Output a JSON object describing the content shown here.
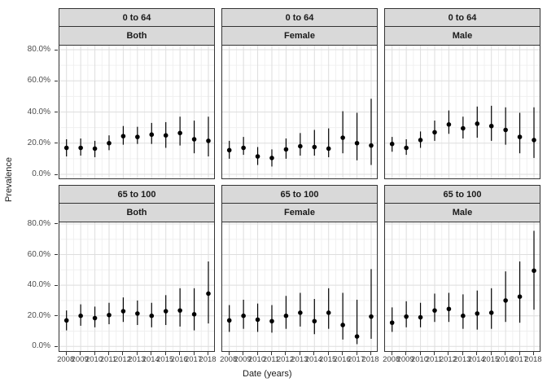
{
  "chart_data": {
    "type": "scatter",
    "subtype": "pointrange-facet-grid",
    "title": "",
    "xlabel": "Date (years)",
    "ylabel": "Prevalence",
    "x": [
      2008,
      2009,
      2010,
      2011,
      2012,
      2013,
      2014,
      2015,
      2016,
      2017,
      2018
    ],
    "x_tick_labels": [
      "2008",
      "2009",
      "2010",
      "2011",
      "2012",
      "2013",
      "2014",
      "2015",
      "2016",
      "2017",
      "2018"
    ],
    "y_tick_values": [
      0,
      20,
      40,
      60,
      80
    ],
    "y_tick_labels": [
      "0.0%",
      "20.0%",
      "40.0%",
      "60.0%",
      "80.0%"
    ],
    "ylim": [
      -3,
      83
    ],
    "grid": true,
    "legend": "none",
    "facet_rows": [
      "0 to 64",
      "65 to 100"
    ],
    "facet_cols": [
      "Both",
      "Female",
      "Male"
    ],
    "points_format": "[value_pct, ci_low_pct, ci_high_pct]",
    "panels": [
      {
        "row_label": "0 to 64",
        "col_label": "Both",
        "points": [
          [
            17,
            11.5,
            22.5
          ],
          [
            17,
            12,
            23
          ],
          [
            16.5,
            11,
            21.5
          ],
          [
            20,
            15.5,
            25
          ],
          [
            24.5,
            19,
            31
          ],
          [
            24,
            19.5,
            30.5
          ],
          [
            25.5,
            19.5,
            33
          ],
          [
            25,
            17,
            33.5
          ],
          [
            26.5,
            18.5,
            37
          ],
          [
            22.5,
            13.5,
            34.5
          ],
          [
            21.5,
            11.5,
            37
          ]
        ]
      },
      {
        "row_label": "0 to 64",
        "col_label": "Female",
        "points": [
          [
            15.5,
            10,
            21.5
          ],
          [
            17,
            12.5,
            24
          ],
          [
            11.5,
            6,
            17.5
          ],
          [
            10.5,
            5,
            16
          ],
          [
            16,
            10,
            23
          ],
          [
            18,
            12,
            26.5
          ],
          [
            17.5,
            12,
            28.5
          ],
          [
            16.5,
            11,
            29.5
          ],
          [
            23.5,
            13.5,
            40.5
          ],
          [
            20,
            9,
            39.5
          ],
          [
            18.5,
            6,
            48.5
          ]
        ]
      },
      {
        "row_label": "0 to 64",
        "col_label": "Male",
        "points": [
          [
            19.5,
            14.5,
            24
          ],
          [
            17,
            12.5,
            22.5
          ],
          [
            22,
            17,
            27.5
          ],
          [
            27,
            21.5,
            34.5
          ],
          [
            32,
            26,
            41
          ],
          [
            29.5,
            23,
            37
          ],
          [
            32.5,
            23.5,
            43.5
          ],
          [
            31,
            21.5,
            44
          ],
          [
            28.5,
            19,
            43
          ],
          [
            24,
            13.5,
            39.5
          ],
          [
            22,
            10.5,
            43
          ]
        ]
      },
      {
        "row_label": "65 to 100",
        "col_label": "Both",
        "points": [
          [
            17,
            10.5,
            23.5
          ],
          [
            20,
            13.5,
            27.5
          ],
          [
            18.5,
            12.5,
            26
          ],
          [
            20.5,
            14.5,
            28.5
          ],
          [
            23,
            16,
            32
          ],
          [
            21.5,
            14,
            30
          ],
          [
            20,
            12.5,
            28.5
          ],
          [
            23,
            14,
            33.5
          ],
          [
            23.5,
            13,
            38
          ],
          [
            21,
            10.5,
            38
          ],
          [
            34.5,
            15,
            55.5
          ]
        ]
      },
      {
        "row_label": "65 to 100",
        "col_label": "Female",
        "points": [
          [
            17,
            9.5,
            27
          ],
          [
            20,
            11.5,
            30.5
          ],
          [
            17.5,
            9.5,
            28
          ],
          [
            16.5,
            9,
            27
          ],
          [
            20,
            11.5,
            33
          ],
          [
            22,
            13,
            35
          ],
          [
            16.5,
            8,
            31
          ],
          [
            22,
            11.5,
            38
          ],
          [
            14,
            4.5,
            35
          ],
          [
            6.5,
            1.5,
            30.5
          ],
          [
            19.5,
            5,
            50.5
          ]
        ]
      },
      {
        "row_label": "65 to 100",
        "col_label": "Male",
        "points": [
          [
            15.5,
            9.5,
            25.5
          ],
          [
            19.5,
            12.5,
            29.5
          ],
          [
            19,
            12.5,
            28.5
          ],
          [
            23.5,
            16,
            34.5
          ],
          [
            24.5,
            16,
            35
          ],
          [
            20,
            11.5,
            34
          ],
          [
            21.5,
            11,
            36.5
          ],
          [
            22,
            11.5,
            38
          ],
          [
            30,
            16,
            49
          ],
          [
            32.5,
            15.5,
            55.5
          ],
          [
            49.5,
            24,
            75.5
          ]
        ]
      }
    ],
    "colors": {
      "point": "#000000",
      "error_bar": "#000000",
      "grid_major": "#dedede",
      "grid_minor": "#f0f0f0",
      "strip_background": "#d9d9d9",
      "panel_border": "#333333",
      "axis_text": "#4d4d4d",
      "background": "#ffffff"
    }
  }
}
